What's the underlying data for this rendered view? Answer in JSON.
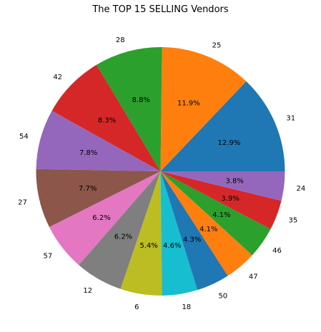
{
  "chart_data": {
    "type": "pie",
    "title": "The TOP 15 SELLING Vendors",
    "start_angle_deg": 0,
    "direction": "counterclockwise",
    "slices": [
      {
        "label": "31",
        "pct": 12.9,
        "pct_label": "12.9%",
        "color": "#1f77b4"
      },
      {
        "label": "25",
        "pct": 11.9,
        "pct_label": "11.9%",
        "color": "#ff7f0e"
      },
      {
        "label": "28",
        "pct": 8.8,
        "pct_label": "8.8%",
        "color": "#2ca02c"
      },
      {
        "label": "42",
        "pct": 8.3,
        "pct_label": "8.3%",
        "color": "#d62728"
      },
      {
        "label": "54",
        "pct": 7.8,
        "pct_label": "7.8%",
        "color": "#9467bd"
      },
      {
        "label": "27",
        "pct": 7.7,
        "pct_label": "7.7%",
        "color": "#8c564b"
      },
      {
        "label": "57",
        "pct": 6.2,
        "pct_label": "6.2%",
        "color": "#e377c2"
      },
      {
        "label": "12",
        "pct": 6.2,
        "pct_label": "6.2%",
        "color": "#7f7f7f"
      },
      {
        "label": "6",
        "pct": 5.4,
        "pct_label": "5.4%",
        "color": "#bcbd22"
      },
      {
        "label": "18",
        "pct": 4.6,
        "pct_label": "4.6%",
        "color": "#17becf"
      },
      {
        "label": "50",
        "pct": 4.3,
        "pct_label": "4.3%",
        "color": "#1f77b4"
      },
      {
        "label": "47",
        "pct": 4.1,
        "pct_label": "4.1%",
        "color": "#ff7f0e"
      },
      {
        "label": "46",
        "pct": 4.1,
        "pct_label": "4.1%",
        "color": "#2ca02c"
      },
      {
        "label": "35",
        "pct": 3.9,
        "pct_label": "3.9%",
        "color": "#d62728"
      },
      {
        "label": "24",
        "pct": 3.8,
        "pct_label": "3.8%",
        "color": "#9467bd"
      }
    ]
  }
}
